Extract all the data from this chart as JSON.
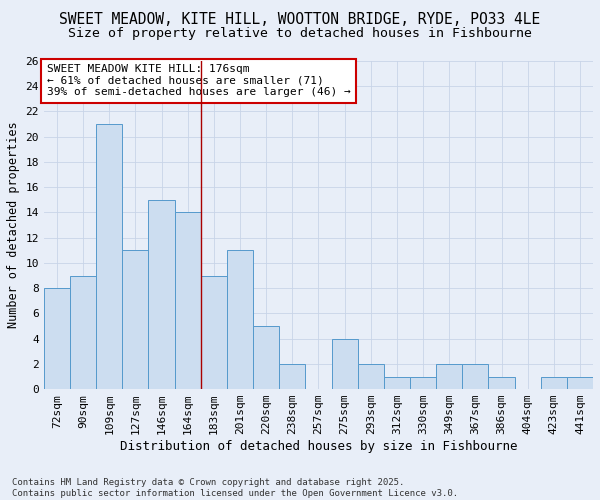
{
  "title": "SWEET MEADOW, KITE HILL, WOOTTON BRIDGE, RYDE, PO33 4LE",
  "subtitle": "Size of property relative to detached houses in Fishbourne",
  "xlabel": "Distribution of detached houses by size in Fishbourne",
  "ylabel": "Number of detached properties",
  "categories": [
    "72sqm",
    "90sqm",
    "109sqm",
    "127sqm",
    "146sqm",
    "164sqm",
    "183sqm",
    "201sqm",
    "220sqm",
    "238sqm",
    "257sqm",
    "275sqm",
    "293sqm",
    "312sqm",
    "330sqm",
    "349sqm",
    "367sqm",
    "386sqm",
    "404sqm",
    "423sqm",
    "441sqm"
  ],
  "values": [
    8,
    9,
    21,
    11,
    15,
    14,
    9,
    11,
    5,
    2,
    0,
    4,
    2,
    1,
    1,
    2,
    2,
    1,
    0,
    1,
    1
  ],
  "bar_color": "#ccddf0",
  "bar_edge_color": "#5599cc",
  "highlight_index": 5,
  "highlight_line_color": "#aa0000",
  "annotation_text": "SWEET MEADOW KITE HILL: 176sqm\n← 61% of detached houses are smaller (71)\n39% of semi-detached houses are larger (46) →",
  "annotation_box_color": "#ffffff",
  "annotation_box_edge_color": "#cc0000",
  "ylim": [
    0,
    26
  ],
  "yticks": [
    0,
    2,
    4,
    6,
    8,
    10,
    12,
    14,
    16,
    18,
    20,
    22,
    24,
    26
  ],
  "grid_color": "#c8d4e8",
  "background_color": "#e8eef8",
  "footer_text": "Contains HM Land Registry data © Crown copyright and database right 2025.\nContains public sector information licensed under the Open Government Licence v3.0.",
  "title_fontsize": 10.5,
  "subtitle_fontsize": 9.5,
  "xlabel_fontsize": 9,
  "ylabel_fontsize": 8.5,
  "tick_fontsize": 8,
  "annotation_fontsize": 8,
  "footer_fontsize": 6.5
}
